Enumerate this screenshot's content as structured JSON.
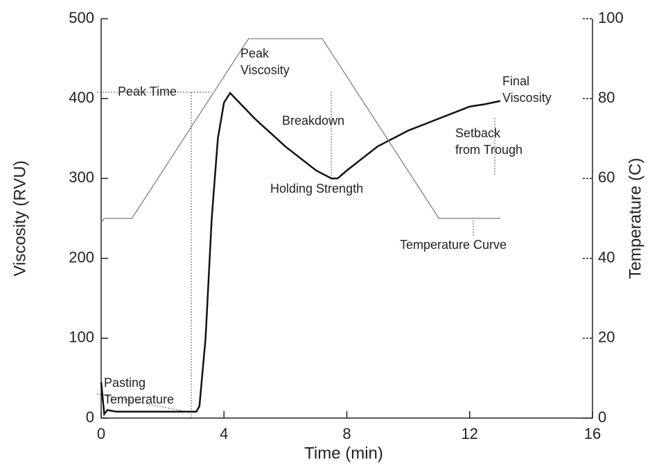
{
  "chart_data": {
    "type": "line",
    "xlabel": "Time (min)",
    "ylabel": "Viscosity (RVU)",
    "y2label": "Temperature (C)",
    "xlim": [
      0,
      16
    ],
    "xticks": [
      0,
      4,
      8,
      12,
      16
    ],
    "ylim": [
      0,
      500
    ],
    "yticks": [
      0,
      100,
      200,
      300,
      400,
      500
    ],
    "y2lim": [
      0,
      100
    ],
    "y2ticks": [
      0,
      20,
      40,
      60,
      80,
      100
    ],
    "series": [
      {
        "color": "#111111",
        "x": [
          0,
          0.1,
          0.2,
          0.5,
          1,
          2,
          3,
          3.1,
          3.2,
          3.4,
          3.6,
          3.8,
          4,
          4.2,
          4.5,
          5,
          6,
          7,
          7.5,
          7.7,
          8,
          9,
          10,
          11,
          12,
          12.5,
          13
        ],
        "values": [
          45,
          5,
          10,
          8,
          8,
          8,
          8,
          8,
          15,
          100,
          250,
          350,
          395,
          407,
          395,
          375,
          340,
          310,
          300,
          300,
          310,
          340,
          360,
          375,
          390,
          393,
          397
        ]
      },
      {
        "color": "#777777",
        "axis": "y2",
        "x": [
          0,
          0.1,
          1,
          4.8,
          7.2,
          11,
          13
        ],
        "values": [
          49,
          50,
          50,
          95,
          95,
          50,
          50
        ]
      }
    ],
    "annotations": [
      {
        "lines": [
          "Peak",
          "Viscosity"
        ]
      },
      {
        "lines": [
          "Peak Time"
        ]
      },
      {
        "lines": [
          "Breakdown"
        ]
      },
      {
        "lines": [
          "Final",
          "Viscosity"
        ]
      },
      {
        "lines": [
          "Setback",
          "from Trough"
        ]
      },
      {
        "lines": [
          "Holding Strength"
        ]
      },
      {
        "lines": [
          "Temperature Curve"
        ]
      },
      {
        "lines": [
          "Pasting",
          "Temperature"
        ]
      }
    ]
  }
}
